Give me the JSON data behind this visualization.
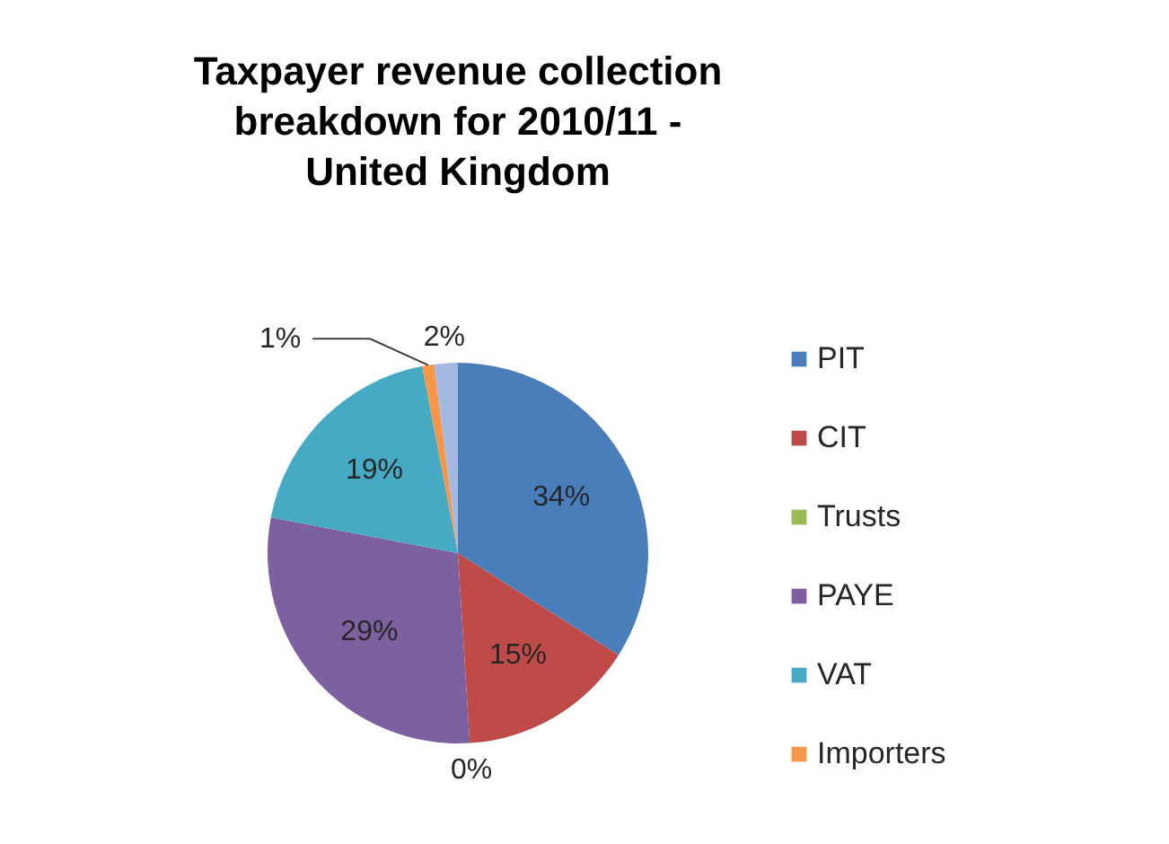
{
  "chart_data": {
    "type": "pie",
    "title": "Taxpayer revenue collection breakdown for 2010/11 - United Kingdom",
    "categories": [
      "PIT",
      "CIT",
      "Trusts",
      "PAYE",
      "VAT",
      "Importers",
      null
    ],
    "values": [
      34,
      15,
      0,
      29,
      19,
      1,
      2
    ],
    "colors": [
      "#4a7ebb",
      "#be4b48",
      "#98b954",
      "#7d60a0",
      "#46aac5",
      "#f79646",
      "#a5b9e0"
    ],
    "value_labels": [
      "34%",
      "15%",
      "0%",
      "29%",
      "19%",
      "1%",
      "2%"
    ],
    "legend": "right"
  }
}
